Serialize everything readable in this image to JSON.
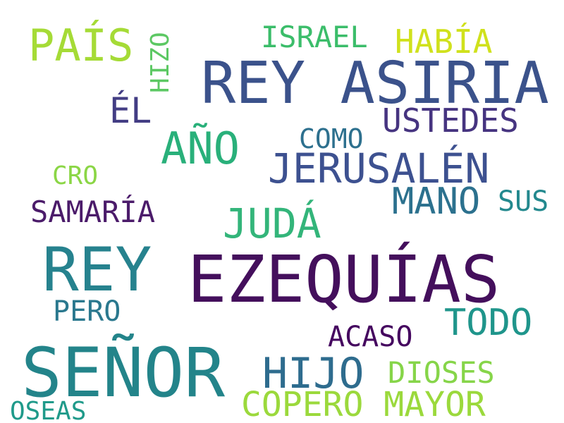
{
  "words": [
    {
      "text": "EZEQUÍAS",
      "color": "#440f5c"
    },
    {
      "text": "REY ASIRIA",
      "color": "#3b528b"
    },
    {
      "text": "SEÑOR",
      "color": "#23848a"
    },
    {
      "text": "REY",
      "color": "#26828e"
    },
    {
      "text": "JERUSALÉN",
      "color": "#3d5190"
    },
    {
      "text": "AÑO",
      "color": "#29b07a"
    },
    {
      "text": "JUDÁ",
      "color": "#33b57a"
    },
    {
      "text": "MANO",
      "color": "#2c718e"
    },
    {
      "text": "HIJO",
      "color": "#2e6c8e"
    },
    {
      "text": "COPERO MAYOR",
      "color": "#9bd93c"
    },
    {
      "text": "PAÍS",
      "color": "#a5db36"
    },
    {
      "text": "HABÍA",
      "color": "#d0e11c"
    },
    {
      "text": "ISRAEL",
      "color": "#3bbd6a"
    },
    {
      "text": "USTEDES",
      "color": "#463480"
    },
    {
      "text": "ÉL",
      "color": "#433d84"
    },
    {
      "text": "TODO",
      "color": "#1f958b"
    },
    {
      "text": "SAMARÍA",
      "color": "#4b1b6a"
    },
    {
      "text": "DIOSES",
      "color": "#86d549"
    },
    {
      "text": "ACASO",
      "color": "#45065f"
    },
    {
      "text": "COMO",
      "color": "#2d708e"
    },
    {
      "text": "SUS",
      "color": "#23898e"
    },
    {
      "text": "PERO",
      "color": "#2a788e"
    },
    {
      "text": "CRO",
      "color": "#8bd646"
    },
    {
      "text": "OSEAS",
      "color": "#1f9a8a"
    },
    {
      "text": "HIZO",
      "color": "#5cc863"
    }
  ]
}
